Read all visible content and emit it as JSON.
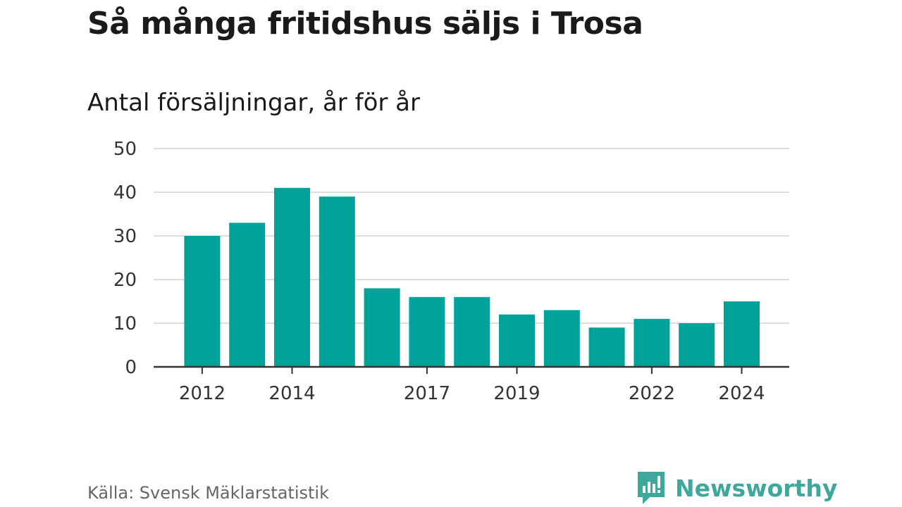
{
  "chart_data": {
    "type": "bar",
    "title": "Så många fritidshus säljs i Trosa",
    "subtitle": "Antal försäljningar, år för år",
    "x": [
      2012,
      2013,
      2014,
      2015,
      2016,
      2017,
      2018,
      2019,
      2020,
      2021,
      2022,
      2023,
      2024
    ],
    "values": [
      30,
      33,
      41,
      39,
      18,
      16,
      16,
      12,
      13,
      9,
      11,
      10,
      15
    ],
    "x_tick_labels": [
      2012,
      2014,
      2017,
      2019,
      2022,
      2024
    ],
    "y_ticks": [
      0,
      10,
      20,
      30,
      40,
      50
    ],
    "ylim": [
      0,
      50
    ],
    "grid": true,
    "bar_color": "#00a39a",
    "xlabel": "",
    "ylabel": ""
  },
  "footer": {
    "source": "Källa: Svensk Mäklarstatistik",
    "brand": "Newsworthy",
    "brand_icon": "newsworthy-logo-icon",
    "brand_color": "#3fa89c"
  }
}
